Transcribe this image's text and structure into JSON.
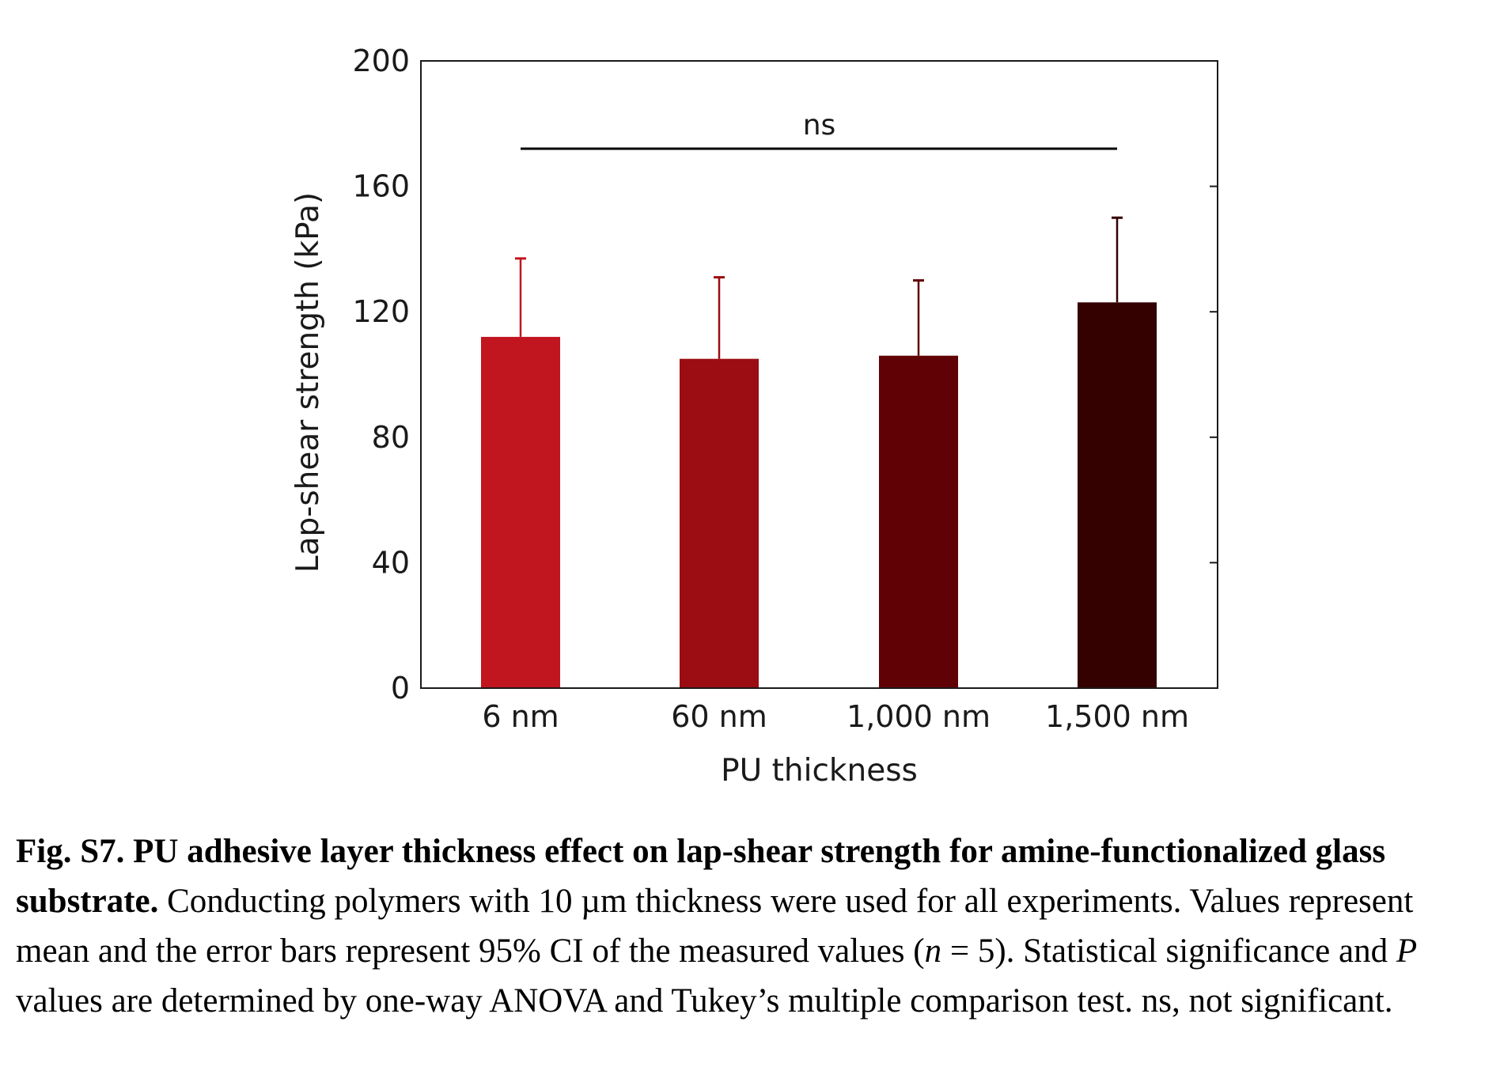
{
  "chart_data": {
    "type": "bar",
    "categories": [
      "6 nm",
      "60 nm",
      "1,000 nm",
      "1,500 nm"
    ],
    "values": [
      112,
      105,
      106,
      123
    ],
    "error_upper": [
      137,
      131,
      130,
      150
    ],
    "bar_colors": [
      "#c1161f",
      "#9c0c13",
      "#600205",
      "#350000"
    ],
    "xlabel": "PU thickness",
    "ylabel": "Lap-shear strength (kPa)",
    "ylim": [
      0,
      200
    ],
    "yticks": [
      0,
      40,
      80,
      120,
      160,
      200
    ],
    "grid": false,
    "significance": {
      "label": "ns",
      "from_category": "6 nm",
      "to_category": "1,500 nm",
      "level": 172
    }
  },
  "caption": {
    "bold": "Fig. S7. PU adhesive layer thickness effect on lap-shear strength for amine-functionalized glass substrate.",
    "text1": " Conducting polymers with 10 µm thickness were used for all experiments. Values represent mean and the error bars represent 95% CI of the measured values (",
    "n_var": "n",
    "text2": " = 5). Statistical significance and ",
    "p_var": "P",
    "text3": " values are determined by one-way ANOVA and Tukey’s multiple comparison test. ns, not significant."
  }
}
